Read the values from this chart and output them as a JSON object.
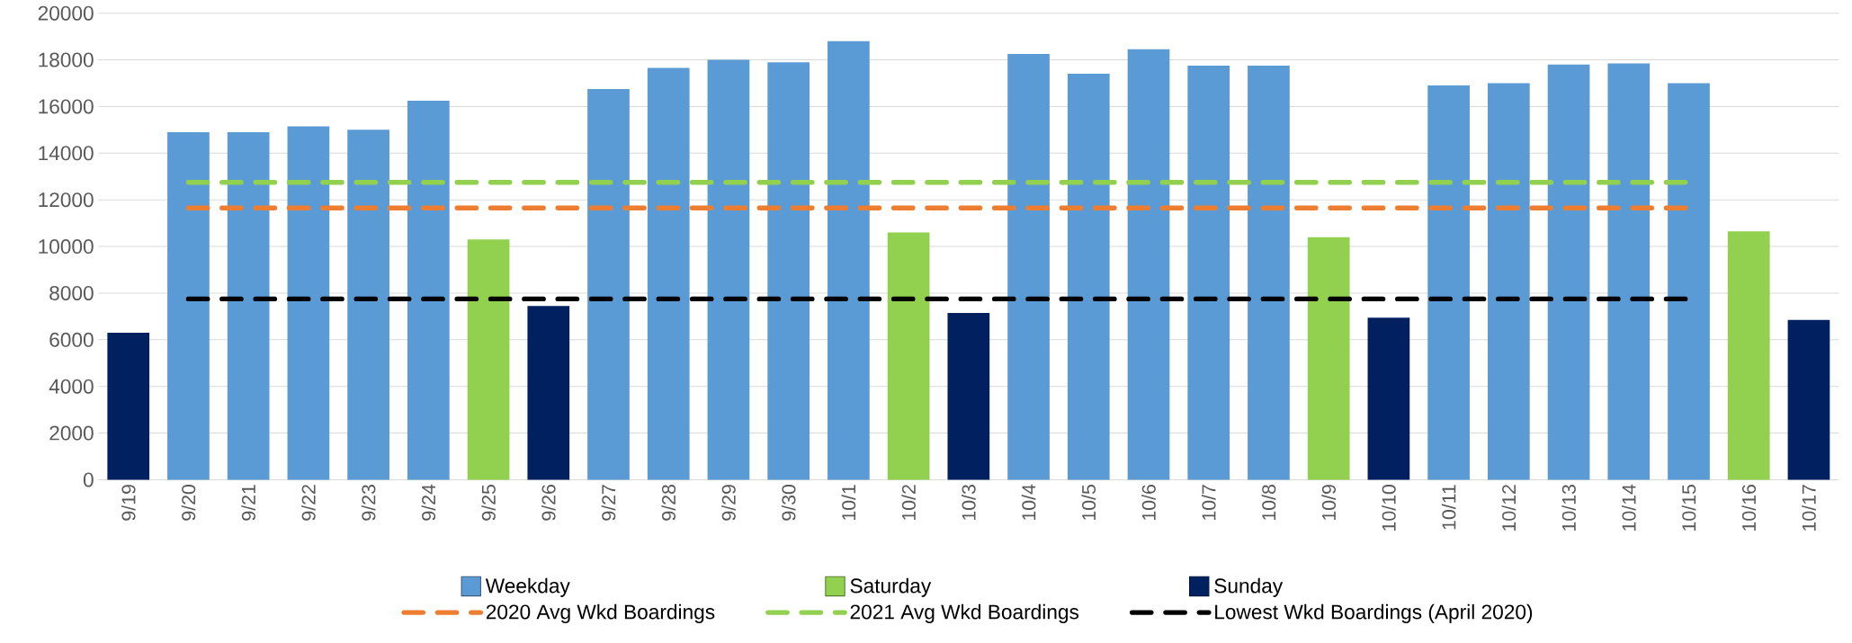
{
  "chart_data": {
    "type": "bar",
    "categories": [
      "9/19",
      "9/20",
      "9/21",
      "9/22",
      "9/23",
      "9/24",
      "9/25",
      "9/26",
      "9/27",
      "9/28",
      "9/29",
      "9/30",
      "10/1",
      "10/2",
      "10/3",
      "10/4",
      "10/5",
      "10/6",
      "10/7",
      "10/8",
      "10/9",
      "10/10",
      "10/11",
      "10/12",
      "10/13",
      "10/14",
      "10/15",
      "10/16",
      "10/17"
    ],
    "series": [
      {
        "name": "Weekday",
        "color": "#5b9bd5",
        "values": [
          null,
          14900,
          14900,
          15150,
          15000,
          16250,
          null,
          null,
          16750,
          17650,
          18000,
          17900,
          18800,
          null,
          null,
          18250,
          17400,
          18450,
          17750,
          17750,
          null,
          null,
          16900,
          17000,
          17800,
          17850,
          17000,
          null,
          null
        ]
      },
      {
        "name": "Saturday",
        "color": "#92d050",
        "values": [
          null,
          null,
          null,
          null,
          null,
          null,
          10300,
          null,
          null,
          null,
          null,
          null,
          null,
          10600,
          null,
          null,
          null,
          null,
          null,
          null,
          10400,
          null,
          null,
          null,
          null,
          null,
          null,
          10650,
          null
        ]
      },
      {
        "name": "Sunday",
        "color": "#002060",
        "values": [
          6300,
          null,
          null,
          null,
          null,
          null,
          null,
          7450,
          null,
          null,
          null,
          null,
          null,
          null,
          7150,
          null,
          null,
          null,
          null,
          null,
          null,
          6950,
          null,
          null,
          null,
          null,
          null,
          null,
          6850
        ]
      },
      {
        "name": "2020 Avg Wkd Boardings",
        "type": "line",
        "line_style": "dashed",
        "color": "#ed7d31",
        "values": [
          null,
          11650,
          11650,
          11650,
          11650,
          11650,
          11650,
          11650,
          11650,
          11650,
          11650,
          11650,
          11650,
          11650,
          11650,
          11650,
          11650,
          11650,
          11650,
          11650,
          11650,
          11650,
          11650,
          11650,
          11650,
          11650,
          11650,
          null,
          null
        ]
      },
      {
        "name": "2021 Avg Wkd Boardings",
        "type": "line",
        "line_style": "dashed",
        "color": "#92d050",
        "values": [
          null,
          12750,
          12750,
          12750,
          12750,
          12750,
          12750,
          12750,
          12750,
          12750,
          12750,
          12750,
          12750,
          12750,
          12750,
          12750,
          12750,
          12750,
          12750,
          12750,
          12750,
          12750,
          12750,
          12750,
          12750,
          12750,
          12750,
          null,
          null
        ]
      },
      {
        "name": "Lowest Wkd Boardings  (April 2020)",
        "type": "line",
        "line_style": "dashed",
        "color": "#000000",
        "values": [
          null,
          7750,
          7750,
          7750,
          7750,
          7750,
          7750,
          7750,
          7750,
          7750,
          7750,
          7750,
          7750,
          7750,
          7750,
          7750,
          7750,
          7750,
          7750,
          7750,
          7750,
          7750,
          7750,
          7750,
          7750,
          7750,
          7750,
          null,
          null
        ]
      }
    ],
    "ylim": [
      0,
      20000
    ],
    "yticks": [
      0,
      2000,
      4000,
      6000,
      8000,
      10000,
      12000,
      14000,
      16000,
      18000,
      20000
    ],
    "grid": "y",
    "legend": "bottom"
  }
}
